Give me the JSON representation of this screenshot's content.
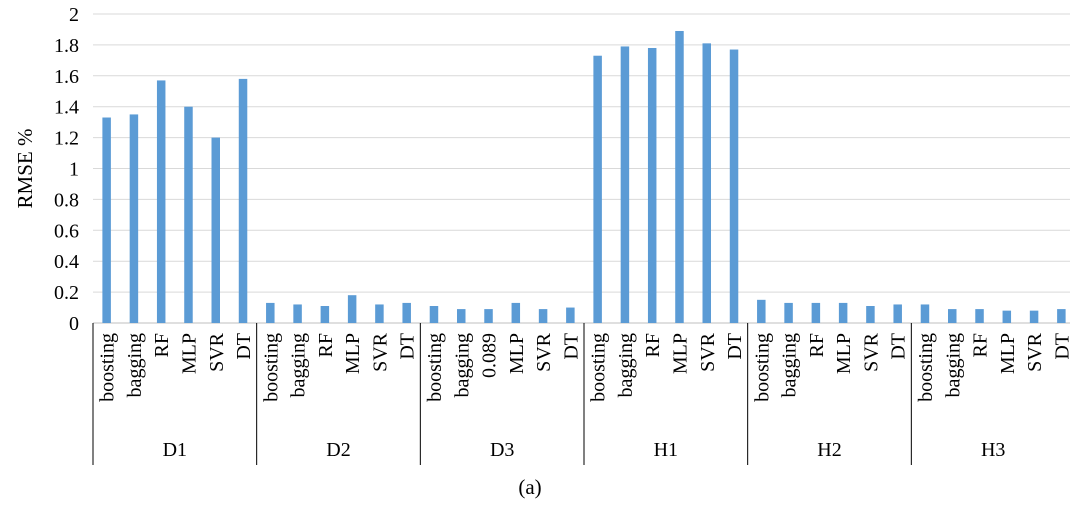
{
  "caption": "(a)",
  "chart_data": {
    "type": "bar",
    "title": "",
    "xlabel": "",
    "ylabel": "RMSE %",
    "ylim": [
      0,
      2
    ],
    "yticks": [
      0,
      0.2,
      0.4,
      0.6,
      0.8,
      1,
      1.2,
      1.4,
      1.6,
      1.8,
      2
    ],
    "ytick_labels": [
      "0",
      "0.2",
      "0.4",
      "0.6",
      "0.8",
      "1",
      "1.2",
      "1.4",
      "1.6",
      "1.8",
      "2"
    ],
    "grid": true,
    "legend": false,
    "bar_color": "#5b9bd5",
    "groups": [
      {
        "name": "D1",
        "categories": [
          "boosting",
          "bagging",
          "RF",
          "MLP",
          "SVR",
          "DT"
        ],
        "values": [
          1.33,
          1.35,
          1.57,
          1.4,
          1.2,
          1.58
        ]
      },
      {
        "name": "D2",
        "categories": [
          "boosting",
          "bagging",
          "RF",
          "MLP",
          "SVR",
          "DT"
        ],
        "values": [
          0.13,
          0.12,
          0.11,
          0.18,
          0.12,
          0.13
        ]
      },
      {
        "name": "D3",
        "categories": [
          "boosting",
          "bagging",
          "0.089",
          "MLP",
          "SVR",
          "DT"
        ],
        "values": [
          0.11,
          0.09,
          0.09,
          0.13,
          0.09,
          0.1
        ]
      },
      {
        "name": "H1",
        "categories": [
          "boosting",
          "bagging",
          "RF",
          "MLP",
          "SVR",
          "DT"
        ],
        "values": [
          1.73,
          1.79,
          1.78,
          1.89,
          1.81,
          1.77
        ]
      },
      {
        "name": "H2",
        "categories": [
          "boosting",
          "bagging",
          "RF",
          "MLP",
          "SVR",
          "DT"
        ],
        "values": [
          0.15,
          0.13,
          0.13,
          0.13,
          0.11,
          0.12
        ]
      },
      {
        "name": "H3",
        "categories": [
          "boosting",
          "bagging",
          "RF",
          "MLP",
          "SVR",
          "DT"
        ],
        "values": [
          0.12,
          0.09,
          0.09,
          0.08,
          0.08,
          0.09
        ]
      }
    ]
  }
}
